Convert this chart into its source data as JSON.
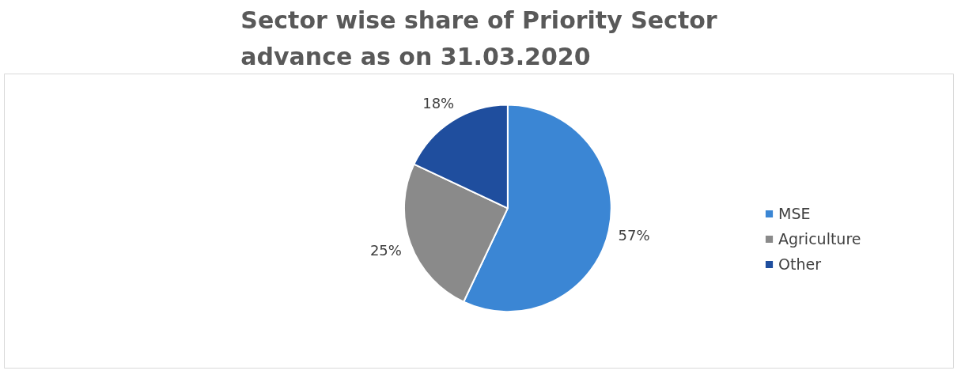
{
  "chart_data": {
    "type": "pie",
    "title": "Sector wise share of Priority Sector\nadvance as on 31.03.2020",
    "categories": [
      "MSE",
      "Agriculture",
      "Other"
    ],
    "values": [
      57,
      25,
      18
    ],
    "colors": [
      "#3b86d4",
      "#8a8a8a",
      "#1f4e9e"
    ],
    "value_labels": [
      "57%",
      "25%",
      "18%"
    ],
    "legend": "right"
  }
}
